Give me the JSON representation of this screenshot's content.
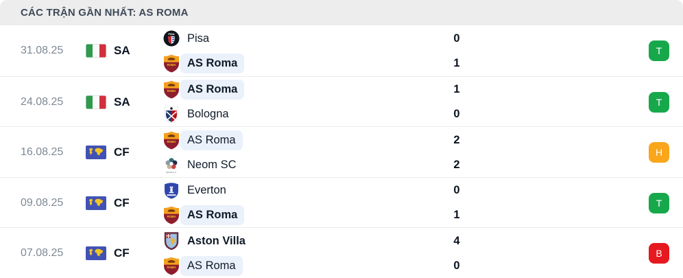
{
  "header": {
    "title": "CÁC TRẬN GẦN NHẤT: AS ROMA"
  },
  "colors": {
    "header_bg": "#EDEDED",
    "highlight_bg": "#EAF1FB",
    "win": "#18A84C",
    "draw": "#F9A61B",
    "loss": "#E5191F"
  },
  "matches": [
    {
      "date": "31.08.25",
      "competition": {
        "code": "SA",
        "icon": "italy-flag"
      },
      "teams": [
        {
          "name": "Pisa",
          "score": "0",
          "logo": "pisa-crest",
          "winner": false,
          "highlight": false
        },
        {
          "name": "AS Roma",
          "score": "1",
          "logo": "roma-crest",
          "winner": true,
          "highlight": true
        }
      ],
      "result": {
        "label": "T",
        "color": "#18A84C"
      }
    },
    {
      "date": "24.08.25",
      "competition": {
        "code": "SA",
        "icon": "italy-flag"
      },
      "teams": [
        {
          "name": "AS Roma",
          "score": "1",
          "logo": "roma-crest",
          "winner": true,
          "highlight": true
        },
        {
          "name": "Bologna",
          "score": "0",
          "logo": "bologna-crest",
          "winner": false,
          "highlight": false
        }
      ],
      "result": {
        "label": "T",
        "color": "#18A84C"
      }
    },
    {
      "date": "16.08.25",
      "competition": {
        "code": "CF",
        "icon": "world-map"
      },
      "teams": [
        {
          "name": "AS Roma",
          "score": "2",
          "logo": "roma-crest",
          "winner": false,
          "highlight": true
        },
        {
          "name": "Neom SC",
          "score": "2",
          "logo": "neom-crest",
          "winner": false,
          "highlight": false
        }
      ],
      "result": {
        "label": "H",
        "color": "#F9A61B"
      }
    },
    {
      "date": "09.08.25",
      "competition": {
        "code": "CF",
        "icon": "world-map"
      },
      "teams": [
        {
          "name": "Everton",
          "score": "0",
          "logo": "everton-crest",
          "winner": false,
          "highlight": false
        },
        {
          "name": "AS Roma",
          "score": "1",
          "logo": "roma-crest",
          "winner": true,
          "highlight": true
        }
      ],
      "result": {
        "label": "T",
        "color": "#18A84C"
      }
    },
    {
      "date": "07.08.25",
      "competition": {
        "code": "CF",
        "icon": "world-map"
      },
      "teams": [
        {
          "name": "Aston Villa",
          "score": "4",
          "logo": "aston-villa-crest",
          "winner": true,
          "highlight": false
        },
        {
          "name": "AS Roma",
          "score": "0",
          "logo": "roma-crest",
          "winner": false,
          "highlight": true
        }
      ],
      "result": {
        "label": "B",
        "color": "#E5191F"
      }
    }
  ]
}
